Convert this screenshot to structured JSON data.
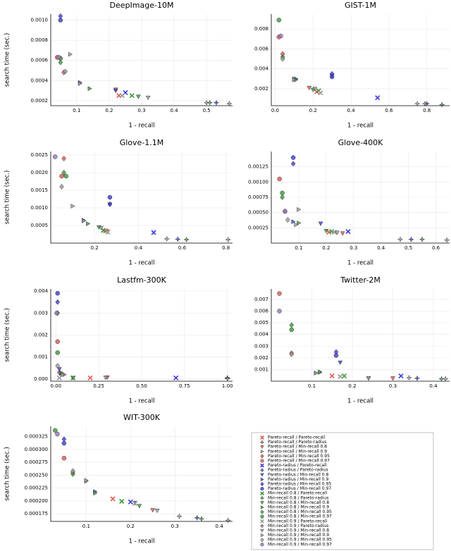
{
  "legend": {
    "entries": [
      {
        "name": "Pareto-recall / Pareto-recall",
        "color": "#e0584e",
        "marker": "x"
      },
      {
        "name": "Pareto-recall / Pareto-radius",
        "color": "#9a9a9a",
        "marker": "star"
      },
      {
        "name": "Pareto-recall / Min-recall 0.8",
        "color": "#e0584e",
        "marker": "tri-down"
      },
      {
        "name": "Pareto-recall / Min-recall 0.9",
        "color": "#9a9a9a",
        "marker": "tri-right"
      },
      {
        "name": "Pareto-recall / Min-recall 0.95",
        "color": "#e0584e",
        "marker": "diamond"
      },
      {
        "name": "Pareto-recall / Min-recall 0.97",
        "color": "#e0584e",
        "marker": "circle"
      },
      {
        "name": "Pareto-radius / Pareto-recall",
        "color": "#3b3bd9",
        "marker": "x"
      },
      {
        "name": "Pareto-radius / Pareto-radius",
        "color": "#3b3bd9",
        "marker": "star"
      },
      {
        "name": "Pareto-radius / Min-recall 0.8",
        "color": "#3b3bd9",
        "marker": "tri-down"
      },
      {
        "name": "Pareto-radius / Min-recall 0.9",
        "color": "#3b3bd9",
        "marker": "tri-right"
      },
      {
        "name": "Pareto-radius / Min-recall 0.95",
        "color": "#3b3bd9",
        "marker": "diamond"
      },
      {
        "name": "Pareto-radius / Min-recall 0.97",
        "color": "#3b3bd9",
        "marker": "circle"
      },
      {
        "name": "Min-recall 0.8 / Pareto-recall",
        "color": "#3a9a3a",
        "marker": "x"
      },
      {
        "name": "Min-recall 0.8 / Pareto-radius",
        "color": "#3a9a3a",
        "marker": "star"
      },
      {
        "name": "Min-recall 0.8 / Min-recall 0.8",
        "color": "#3a9a3a",
        "marker": "tri-down"
      },
      {
        "name": "Min-recall 0.8 / Min-recall 0.9",
        "color": "#3a9a3a",
        "marker": "tri-right"
      },
      {
        "name": "Min-recall 0.8 / Min-recall 0.95",
        "color": "#3a9a3a",
        "marker": "diamond"
      },
      {
        "name": "Min-recall 0.8 / Min-recall 0.97",
        "color": "#3a9a3a",
        "marker": "circle"
      },
      {
        "name": "Min-recall 0.9 / Pareto-recall",
        "color": "#9a9a9a",
        "marker": "x"
      },
      {
        "name": "Min-recall 0.9 / Pareto-radius",
        "color": "#9a9a9a",
        "marker": "star"
      },
      {
        "name": "Min-recall 0.9 / Min-recall 0.8",
        "color": "#9a9a9a",
        "marker": "tri-down"
      },
      {
        "name": "Min-recall 0.9 / Min-recall 0.9",
        "color": "#9a9a9a",
        "marker": "tri-right"
      },
      {
        "name": "Min-recall 0.9 / Min-recall 0.95",
        "color": "#9a9a9a",
        "marker": "diamond"
      },
      {
        "name": "Min-recall 0.9 / Min-recall 0.97",
        "color": "#9a70c0",
        "marker": "circle"
      }
    ]
  },
  "chart_data": [
    {
      "type": "scatter",
      "title": "DeepImage-10M",
      "x_label": "1 - recall",
      "y_label": "search time (sec.)",
      "xlim": [
        0.02,
        0.58
      ],
      "ylim": [
        0.00015,
        0.00106
      ],
      "xticks": [
        0.1,
        0.2,
        0.3,
        0.4,
        0.5
      ],
      "yticks": [
        0.0002,
        0.0004,
        0.0006,
        0.0008,
        {
          "value": 0.001,
          "label": "0.0010"
        }
      ],
      "x": [
        0.23,
        0.5,
        0.22,
        0.08,
        0.06,
        0.04,
        0.25,
        0.53,
        0.22,
        0.11,
        0.05,
        0.05,
        0.27,
        0.51,
        0.29,
        0.14,
        0.05,
        0.05,
        0.24,
        0.57,
        0.32,
        0.11,
        0.065,
        0.045
      ],
      "y": [
        0.00025,
        0.00018,
        0.00031,
        0.00066,
        0.00048,
        0.00063,
        0.00028,
        0.00018,
        0.0003,
        0.00038,
        0.00104,
        0.001,
        0.00025,
        0.00018,
        0.00024,
        0.00032,
        0.00058,
        0.00062,
        0.00025,
        0.00017,
        0.00023,
        0.00037,
        0.00049,
        0.00063
      ]
    },
    {
      "type": "scatter",
      "title": "GIST-1M",
      "x_label": "1 - recall",
      "xlim": [
        -0.02,
        0.92
      ],
      "ylim": [
        0.0003,
        0.0095
      ],
      "xticks": [
        {
          "value": 0,
          "label": "0.0"
        },
        0.2,
        0.4,
        0.6,
        0.8
      ],
      "yticks": [
        0.002,
        0.004,
        0.006,
        0.008
      ],
      "x": [
        0.22,
        0.75,
        0.18,
        0.1,
        0.04,
        0.02,
        0.54,
        0.8,
        0.3,
        0.11,
        0.3,
        0.3,
        0.23,
        0.88,
        0.2,
        0.11,
        0.04,
        0.02,
        0.24,
        0.79,
        0.21,
        0.1,
        0.04,
        0.03
      ],
      "y": [
        0.0017,
        0.0005,
        0.0021,
        0.003,
        0.0055,
        0.0072,
        0.0011,
        0.0005,
        0.0033,
        0.003,
        0.0035,
        0.0032,
        0.0018,
        0.0004,
        0.0019,
        0.0029,
        0.0052,
        0.0089,
        0.0016,
        0.0005,
        0.002,
        0.0029,
        0.005,
        0.0073
      ]
    },
    {
      "type": "scatter",
      "title": "Glove-1.1M",
      "x_label": "1 - recall",
      "y_label": "search time (sec.)",
      "xlim": [
        0,
        0.83
      ],
      "ylim": [
        0,
        0.0026
      ],
      "xticks": [
        0.2,
        0.4,
        0.6,
        0.8
      ],
      "yticks": [
        0.0005,
        {
          "value": 0.001,
          "label": "0.0010"
        },
        0.0015,
        {
          "value": 0.002,
          "label": "0.0020"
        },
        0.0025
      ],
      "x": [
        0.25,
        0.53,
        0.26,
        0.1,
        0.06,
        0.05,
        0.47,
        0.58,
        0.27,
        0.15,
        0.27,
        0.27,
        0.24,
        0.62,
        0.22,
        0.17,
        0.06,
        0.07,
        0.26,
        0.81,
        0.23,
        0.15,
        0.05,
        0.02
      ],
      "y": [
        0.00035,
        0.00012,
        0.00033,
        0.00105,
        0.0024,
        0.0019,
        0.0003,
        0.00011,
        0.0011,
        0.00065,
        0.0011,
        0.0013,
        0.00036,
        0.0001,
        0.00045,
        0.00055,
        0.002,
        0.0019,
        0.00031,
        0.0001,
        0.00043,
        0.00063,
        0.0016,
        0.00245
      ]
    },
    {
      "type": "scatter",
      "title": "Glove-400K",
      "x_label": "1 - recall",
      "xlim": [
        0,
        0.65
      ],
      "ylim": [
        0,
        0.0015
      ],
      "xticks": [
        0.1,
        0.2,
        0.3,
        0.4,
        0.5,
        0.6
      ],
      "yticks": [
        0.00025,
        {
          "value": 0.0005,
          "label": "0.00050"
        },
        0.00075,
        {
          "value": 0.001,
          "label": "0.00100"
        },
        0.00125
      ],
      "x": [
        0.21,
        0.47,
        0.26,
        0.1,
        0.05,
        0.03,
        0.28,
        0.51,
        0.18,
        0.08,
        0.08,
        0.08,
        0.22,
        0.55,
        0.2,
        0.1,
        0.04,
        0.04,
        0.23,
        0.64,
        0.24,
        0.09,
        0.06,
        0.05
      ],
      "y": [
        0.00018,
        6e-05,
        0.00016,
        0.00055,
        0.00052,
        0.00105,
        0.00019,
        6e-05,
        0.00032,
        0.00035,
        0.0013,
        0.0014,
        0.00019,
        6e-05,
        0.0002,
        0.00033,
        0.00075,
        0.00082,
        0.00018,
        5e-05,
        0.00017,
        0.0003,
        0.00038,
        0.00052
      ]
    },
    {
      "type": "scatter",
      "title": "Lastfm-300K",
      "x_label": "1 - recall",
      "y_label": "search time (sec.)",
      "xlim": [
        -0.03,
        1.03
      ],
      "ylim": [
        -0.0001,
        0.0041
      ],
      "xticks": [
        {
          "value": 0,
          "label": "0.00"
        },
        0.25,
        {
          "value": 0.5,
          "label": "0.50"
        },
        0.75,
        {
          "value": 1,
          "label": "1.00"
        }
      ],
      "yticks": [
        {
          "value": 0,
          "label": "0.000"
        },
        0.001,
        0.002,
        0.003,
        0.004
      ],
      "x": [
        0.2,
        1,
        0.3,
        0.05,
        0.02,
        0.01,
        0.7,
        1,
        0.02,
        0.03,
        0.01,
        0.01,
        0.1,
        1,
        0.1,
        0.03,
        0.01,
        0.01,
        0.02,
        1,
        0.29,
        0.04,
        0.01,
        0.005
      ],
      "y": [
        5e-05,
        4e-05,
        7e-05,
        0.0002,
        0.0003,
        0.0017,
        5e-05,
        5e-05,
        0.00045,
        0.00025,
        0.0035,
        0.0039,
        5e-05,
        3e-05,
        5e-05,
        0.0003,
        0.003,
        0.0012,
        5e-05,
        2e-05,
        6e-05,
        0.0002,
        0.0006,
        0.003
      ]
    },
    {
      "type": "scatter",
      "title": "Twitter-2M",
      "x_label": "1 - recall",
      "xlim": [
        0,
        0.44
      ],
      "ylim": [
        0,
        0.0079
      ],
      "xticks": [
        0.1,
        0.2,
        0.3,
        0.4
      ],
      "yticks": [
        0.001,
        0.002,
        0.003,
        0.004,
        0.005,
        0.006,
        0.007
      ],
      "x": [
        0.15,
        0.34,
        0.3,
        0.12,
        0.05,
        0.02,
        0.32,
        0.36,
        0.17,
        0.11,
        0.16,
        0.16,
        0.18,
        0.42,
        0.24,
        0.12,
        0.05,
        0.05,
        0.17,
        0.43,
        0.24,
        0.11,
        0.05,
        0.02
      ],
      "y": [
        0.00045,
        0.0003,
        0.00025,
        0.0008,
        0.0024,
        0.0075,
        0.00045,
        0.00025,
        0.0016,
        0.0007,
        0.0025,
        0.0022,
        0.00045,
        0.0002,
        0.00025,
        0.00075,
        0.0048,
        0.0044,
        0.0004,
        0.0002,
        0.00025,
        0.0007,
        0.0023,
        0.006
      ]
    },
    {
      "type": "scatter",
      "title": "WIT-300K",
      "x_label": "1 - recall",
      "y_label": "search time (sec.)",
      "xlim": [
        0.02,
        0.43
      ],
      "ylim": [
        0.00016,
        0.000345
      ],
      "xticks": [
        0.1,
        0.2,
        0.3,
        0.4
      ],
      "yticks": [
        0.000175,
        {
          "value": 0.0002,
          "label": "0.000200"
        },
        0.000225,
        {
          "value": 0.00025,
          "label": "0.000250"
        },
        0.000275,
        {
          "value": 0.0003,
          "label": "0.000300"
        },
        0.000325
      ],
      "x": [
        0.16,
        0.31,
        0.25,
        0.1,
        0.07,
        0.05,
        0.2,
        0.35,
        0.21,
        0.12,
        0.05,
        0.05,
        0.18,
        0.36,
        0.22,
        0.12,
        0.07,
        0.03,
        0.21,
        0.42,
        0.26,
        0.1,
        0.07,
        0.035
      ],
      "y": [
        0.000204,
        0.00017,
        0.000182,
        0.000238,
        0.000255,
        0.000283,
        0.000198,
        0.000167,
        0.000196,
        0.000218,
        0.00032,
        0.000312,
        0.000199,
        0.000165,
        0.00019,
        0.000215,
        0.000252,
        0.000337,
        0.000195,
        0.000162,
        0.000181,
        0.00024,
        0.000258,
        0.00033
      ]
    }
  ]
}
